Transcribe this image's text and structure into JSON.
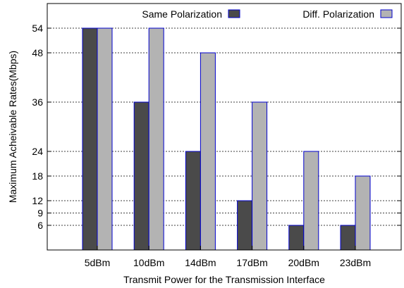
{
  "chart_data": {
    "type": "bar",
    "categories": [
      "5dBm",
      "10dBm",
      "14dBm",
      "17dBm",
      "20dBm",
      "23dBm"
    ],
    "series": [
      {
        "name": "Same Polarization",
        "values": [
          54,
          36,
          24,
          12,
          6,
          6
        ],
        "color": "#4a4a4a"
      },
      {
        "name": "Diff. Polarization",
        "values": [
          54,
          54,
          48,
          36,
          24,
          18
        ],
        "color": "#b3b3b3"
      }
    ],
    "bar_edge_color": "#0000cc",
    "xlabel": "Transmit Power for the Transmission Interface",
    "ylabel": "Maximum Acheivable Rates(Mbps)",
    "yticks": [
      6,
      9,
      12,
      18,
      24,
      36,
      48,
      54
    ],
    "ylim": [
      0,
      60
    ],
    "grid": true,
    "legend_position": "top"
  }
}
